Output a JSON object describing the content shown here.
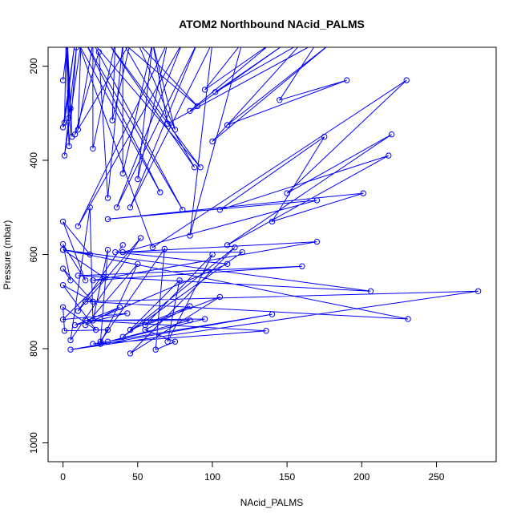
{
  "chart_data": {
    "type": "line",
    "title": "ATOM2 Northbound NAcid_PALMS",
    "xlabel": "NAcid_PALMS",
    "ylabel": "Pressure (mbar)",
    "xlim": [
      -10,
      290
    ],
    "ylim": [
      1040,
      160
    ],
    "y_reversed": true,
    "x_ticks": [
      0,
      50,
      100,
      150,
      200,
      250
    ],
    "y_ticks": [
      200,
      400,
      600,
      800,
      1000
    ],
    "series_color": "#0000ff",
    "series": [
      {
        "points": [
          [
            0,
            230
          ],
          [
            3,
            150
          ],
          [
            5,
            290
          ],
          [
            2,
            150
          ],
          [
            1,
            320
          ],
          [
            8,
            150
          ],
          [
            0,
            330
          ],
          [
            4,
            310
          ],
          [
            3,
            150
          ],
          [
            6,
            350
          ],
          [
            2,
            150
          ],
          [
            4,
            370
          ],
          [
            9,
            160
          ],
          [
            1,
            390
          ],
          [
            12,
            150
          ],
          [
            10,
            335
          ],
          [
            20,
            150
          ],
          [
            20,
            375
          ],
          [
            35,
            150
          ],
          [
            33,
            315
          ],
          [
            45,
            150
          ],
          [
            8,
            345
          ],
          [
            24,
            170
          ],
          [
            30,
            480
          ],
          [
            40,
            150
          ],
          [
            40,
            428
          ],
          [
            60,
            150
          ],
          [
            50,
            440
          ],
          [
            70,
            150
          ],
          [
            10,
            540
          ],
          [
            80,
            150
          ],
          [
            36,
            500
          ],
          [
            90,
            150
          ],
          [
            45,
            500
          ],
          [
            100,
            150
          ],
          [
            85,
            560
          ],
          [
            120,
            150
          ],
          [
            95,
            250
          ],
          [
            140,
            150
          ],
          [
            85,
            295
          ],
          [
            150,
            150
          ],
          [
            102,
            255
          ],
          [
            160,
            150
          ],
          [
            100,
            360
          ],
          [
            180,
            150
          ],
          [
            110,
            325
          ],
          [
            190,
            230
          ],
          [
            145,
            272
          ],
          [
            170,
            150
          ],
          [
            70,
            322
          ],
          [
            60,
            150
          ],
          [
            75,
            335
          ],
          [
            50,
            150
          ],
          [
            90,
            285
          ],
          [
            40,
            150
          ],
          [
            88,
            415
          ],
          [
            30,
            150
          ],
          [
            92,
            415
          ],
          [
            20,
            150
          ],
          [
            80,
            505
          ],
          [
            15,
            150
          ],
          [
            65,
            468
          ],
          [
            10,
            150
          ],
          [
            60,
            585
          ],
          [
            230,
            230
          ],
          [
            150,
            470
          ],
          [
            220,
            345
          ],
          [
            110,
            580
          ],
          [
            218,
            390
          ],
          [
            105,
            505
          ],
          [
            175,
            350
          ],
          [
            140,
            530
          ],
          [
            201,
            470
          ],
          [
            30,
            525
          ],
          [
            170,
            485
          ],
          [
            40,
            595
          ],
          [
            170,
            573
          ],
          [
            20,
            655
          ],
          [
            160,
            625
          ],
          [
            10,
            645
          ],
          [
            206,
            678
          ],
          [
            0,
            590
          ],
          [
            231,
            737
          ],
          [
            15,
            700
          ],
          [
            278,
            678
          ],
          [
            5,
            802
          ],
          [
            140,
            727
          ],
          [
            20,
            790
          ],
          [
            136,
            762
          ],
          [
            15,
            740
          ],
          [
            85,
            740
          ],
          [
            30,
            785
          ],
          [
            95,
            737
          ],
          [
            20,
            740
          ],
          [
            110,
            620
          ],
          [
            35,
            595
          ],
          [
            120,
            595
          ],
          [
            40,
            775
          ],
          [
            115,
            585
          ],
          [
            45,
            810
          ],
          [
            105,
            690
          ],
          [
            55,
            750
          ],
          [
            100,
            600
          ],
          [
            70,
            785
          ],
          [
            78,
            655
          ],
          [
            45,
            760
          ],
          [
            85,
            710
          ],
          [
            55,
            760
          ],
          [
            75,
            785
          ],
          [
            62,
            802
          ],
          [
            68,
            588
          ],
          [
            25,
            785
          ],
          [
            30,
            760
          ],
          [
            1,
            762
          ],
          [
            0,
            712
          ],
          [
            22,
            760
          ],
          [
            0,
            665
          ],
          [
            20,
            700
          ],
          [
            0,
            630
          ],
          [
            5,
            655
          ],
          [
            0,
            578
          ],
          [
            15,
            655
          ],
          [
            0,
            530
          ],
          [
            18,
            600
          ],
          [
            0,
            590
          ],
          [
            28,
            650
          ],
          [
            0,
            738
          ],
          [
            43,
            725
          ],
          [
            8,
            750
          ],
          [
            38,
            712
          ],
          [
            15,
            750
          ],
          [
            50,
            620
          ],
          [
            25,
            790
          ],
          [
            30,
            590
          ],
          [
            20,
            740
          ],
          [
            18,
            500
          ],
          [
            5,
            782
          ],
          [
            52,
            565
          ],
          [
            10,
            720
          ],
          [
            40,
            580
          ]
        ]
      }
    ]
  }
}
